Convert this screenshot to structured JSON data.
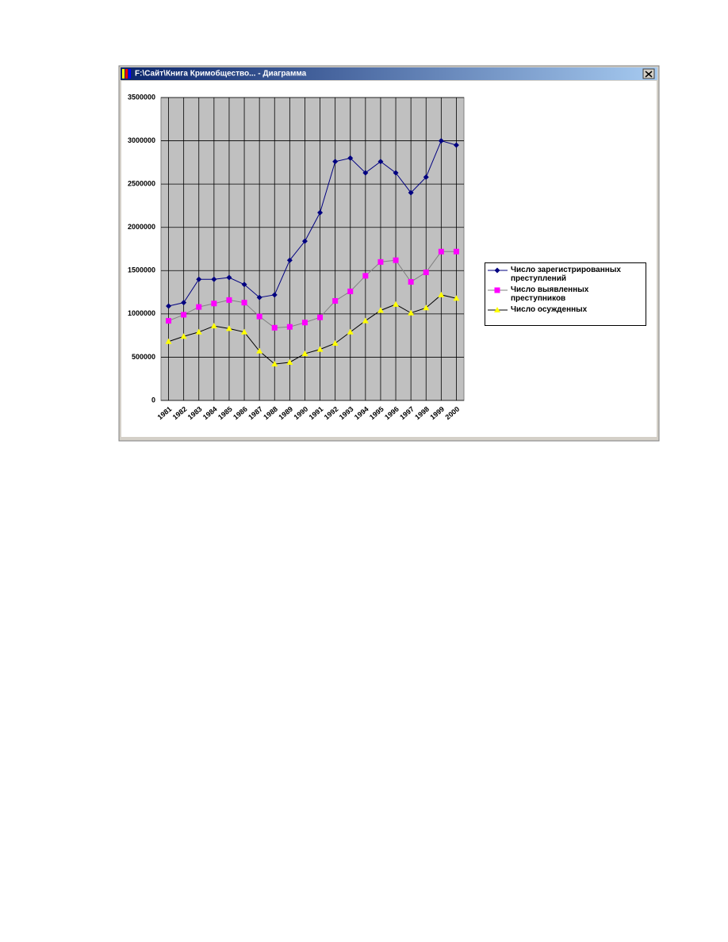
{
  "window": {
    "title": "F:\\Сайт\\Книга Кримобщество... - Диаграмма"
  },
  "chart_data": {
    "type": "line",
    "categories": [
      "1981",
      "1982",
      "1983",
      "1984",
      "1985",
      "1986",
      "1987",
      "1988",
      "1989",
      "1990",
      "1991",
      "1992",
      "1993",
      "1994",
      "1995",
      "1996",
      "1997",
      "1998",
      "1999",
      "2000"
    ],
    "series": [
      {
        "name": "Число зарегистрированных преступлений",
        "color": "#000080",
        "line_color": "#000080",
        "marker": "diamond",
        "values": [
          1090000,
          1130000,
          1400000,
          1400000,
          1420000,
          1340000,
          1190000,
          1220000,
          1620000,
          1840000,
          2170000,
          2760000,
          2800000,
          2630000,
          2760000,
          2630000,
          2400000,
          2580000,
          3000000,
          2950000
        ]
      },
      {
        "name": "Число выявленных преступников",
        "color": "#ff00ff",
        "line_color": "#808080",
        "marker": "square",
        "values": [
          920000,
          990000,
          1080000,
          1120000,
          1160000,
          1130000,
          970000,
          840000,
          850000,
          900000,
          960000,
          1150000,
          1260000,
          1440000,
          1600000,
          1620000,
          1370000,
          1480000,
          1720000,
          1720000
        ]
      },
      {
        "name": "Число осужденных",
        "color": "#ffff00",
        "line_color": "#000000",
        "marker": "triangle",
        "values": [
          680000,
          740000,
          790000,
          860000,
          830000,
          790000,
          570000,
          420000,
          440000,
          540000,
          590000,
          660000,
          790000,
          920000,
          1040000,
          1110000,
          1010000,
          1070000,
          1220000,
          1180000
        ]
      }
    ],
    "ylim": [
      0,
      3500000
    ],
    "yticks": [
      0,
      500000,
      1000000,
      1500000,
      2000000,
      2500000,
      3000000,
      3500000
    ],
    "grid": true,
    "legend": "right"
  }
}
